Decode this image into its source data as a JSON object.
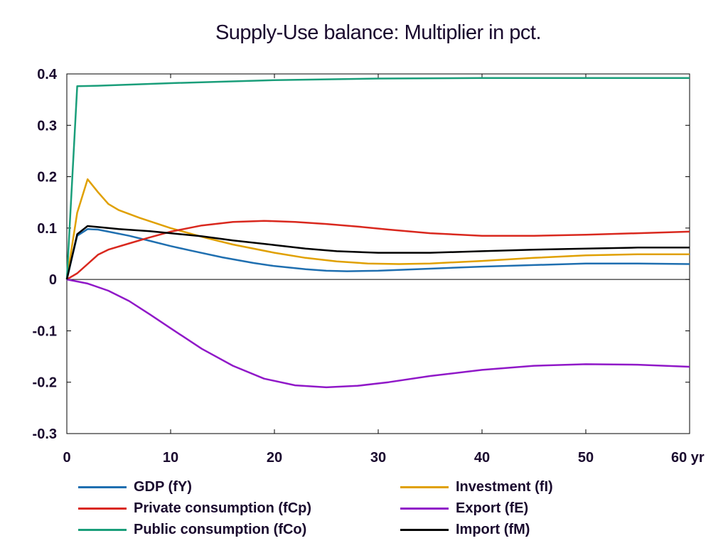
{
  "chart_data": {
    "type": "line",
    "title": "Supply-Use balance: Multiplier in pct.",
    "xlabel": "",
    "ylabel": "",
    "x_unit_label": "yr",
    "xlim": [
      0,
      60
    ],
    "ylim": [
      -0.3,
      0.4
    ],
    "x_ticks": [
      0,
      10,
      20,
      30,
      40,
      50,
      60
    ],
    "y_ticks": [
      -0.3,
      -0.2,
      -0.1,
      0,
      0.1,
      0.2,
      0.3,
      0.4
    ],
    "x_tick_labels": [
      "0",
      "10",
      "20",
      "30",
      "40",
      "50",
      "60 yr"
    ],
    "y_tick_labels": [
      "-0.3",
      "-0.2",
      "-0.1",
      "0",
      "0.1",
      "0.2",
      "0.3",
      "0.4"
    ],
    "grid": false,
    "legend_position": "bottom",
    "series": [
      {
        "name": "GDP (fY)",
        "color": "#1f6fb0",
        "points": [
          [
            0,
            0
          ],
          [
            1,
            0.085
          ],
          [
            2,
            0.098
          ],
          [
            3,
            0.097
          ],
          [
            4,
            0.093
          ],
          [
            6,
            0.085
          ],
          [
            8,
            0.075
          ],
          [
            10,
            0.065
          ],
          [
            12,
            0.056
          ],
          [
            15,
            0.043
          ],
          [
            18,
            0.032
          ],
          [
            20,
            0.026
          ],
          [
            23,
            0.02
          ],
          [
            25,
            0.017
          ],
          [
            27,
            0.016
          ],
          [
            30,
            0.017
          ],
          [
            35,
            0.021
          ],
          [
            40,
            0.025
          ],
          [
            45,
            0.028
          ],
          [
            50,
            0.031
          ],
          [
            55,
            0.031
          ],
          [
            60,
            0.03
          ]
        ]
      },
      {
        "name": "Investment (fI)",
        "color": "#e0a000",
        "points": [
          [
            0,
            0
          ],
          [
            1,
            0.13
          ],
          [
            2,
            0.195
          ],
          [
            3,
            0.17
          ],
          [
            4,
            0.147
          ],
          [
            5,
            0.135
          ],
          [
            7,
            0.12
          ],
          [
            10,
            0.1
          ],
          [
            13,
            0.083
          ],
          [
            16,
            0.068
          ],
          [
            20,
            0.052
          ],
          [
            23,
            0.042
          ],
          [
            26,
            0.035
          ],
          [
            29,
            0.031
          ],
          [
            32,
            0.03
          ],
          [
            35,
            0.031
          ],
          [
            40,
            0.036
          ],
          [
            45,
            0.042
          ],
          [
            50,
            0.047
          ],
          [
            55,
            0.049
          ],
          [
            60,
            0.049
          ]
        ]
      },
      {
        "name": "Private consumption (fCp)",
        "color": "#d9281e",
        "points": [
          [
            0,
            0
          ],
          [
            1,
            0.012
          ],
          [
            2,
            0.03
          ],
          [
            3,
            0.048
          ],
          [
            4,
            0.058
          ],
          [
            6,
            0.07
          ],
          [
            8,
            0.082
          ],
          [
            10,
            0.093
          ],
          [
            13,
            0.105
          ],
          [
            16,
            0.112
          ],
          [
            19,
            0.114
          ],
          [
            22,
            0.112
          ],
          [
            25,
            0.108
          ],
          [
            28,
            0.103
          ],
          [
            31,
            0.097
          ],
          [
            35,
            0.09
          ],
          [
            40,
            0.085
          ],
          [
            45,
            0.085
          ],
          [
            50,
            0.087
          ],
          [
            55,
            0.09
          ],
          [
            60,
            0.093
          ]
        ]
      },
      {
        "name": "Export (fE)",
        "color": "#9018c8",
        "points": [
          [
            0,
            0
          ],
          [
            2,
            -0.008
          ],
          [
            4,
            -0.022
          ],
          [
            6,
            -0.042
          ],
          [
            8,
            -0.068
          ],
          [
            10,
            -0.095
          ],
          [
            13,
            -0.135
          ],
          [
            16,
            -0.168
          ],
          [
            19,
            -0.193
          ],
          [
            22,
            -0.206
          ],
          [
            25,
            -0.21
          ],
          [
            28,
            -0.207
          ],
          [
            31,
            -0.2
          ],
          [
            35,
            -0.188
          ],
          [
            40,
            -0.176
          ],
          [
            45,
            -0.168
          ],
          [
            50,
            -0.165
          ],
          [
            55,
            -0.166
          ],
          [
            60,
            -0.17
          ]
        ]
      },
      {
        "name": "Public consumption (fCo)",
        "color": "#1a9e7a",
        "points": [
          [
            0,
            0
          ],
          [
            1,
            0.376
          ],
          [
            3,
            0.377
          ],
          [
            10,
            0.382
          ],
          [
            20,
            0.388
          ],
          [
            30,
            0.391
          ],
          [
            40,
            0.392
          ],
          [
            50,
            0.392
          ],
          [
            60,
            0.392
          ]
        ]
      },
      {
        "name": "Import (fM)",
        "color": "#000000",
        "points": [
          [
            0,
            0
          ],
          [
            1,
            0.088
          ],
          [
            2,
            0.104
          ],
          [
            3,
            0.102
          ],
          [
            5,
            0.098
          ],
          [
            8,
            0.094
          ],
          [
            10,
            0.09
          ],
          [
            13,
            0.084
          ],
          [
            16,
            0.076
          ],
          [
            20,
            0.067
          ],
          [
            23,
            0.06
          ],
          [
            26,
            0.055
          ],
          [
            30,
            0.052
          ],
          [
            35,
            0.052
          ],
          [
            40,
            0.055
          ],
          [
            45,
            0.058
          ],
          [
            50,
            0.06
          ],
          [
            55,
            0.062
          ],
          [
            60,
            0.062
          ]
        ]
      }
    ]
  }
}
